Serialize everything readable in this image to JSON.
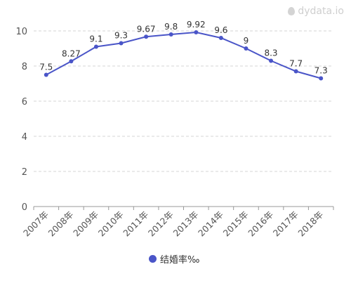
{
  "watermark": "dydata.io",
  "colors": {
    "series": "#4a55c8",
    "grid": "#d6d6d6",
    "axis": "#999999"
  },
  "chart_data": {
    "type": "line",
    "title": "",
    "xlabel": "",
    "ylabel": "",
    "categories": [
      "2007年",
      "2008年",
      "2009年",
      "2010年",
      "2011年",
      "2012年",
      "2013年",
      "2014年",
      "2015年",
      "2016年",
      "2017年",
      "2018年"
    ],
    "series": [
      {
        "name": "结婚率‰",
        "values": [
          7.5,
          8.27,
          9.1,
          9.3,
          9.67,
          9.8,
          9.92,
          9.6,
          9,
          8.3,
          7.7,
          7.3
        ]
      }
    ],
    "data_labels": [
      "7.5",
      "8.27",
      "9.1",
      "9.3",
      "9.67",
      "9.8",
      "9.92",
      "9.6",
      "9",
      "8.3",
      "7.7",
      "7.3"
    ],
    "ylim": [
      0,
      10
    ],
    "yticks": [
      0,
      2,
      4,
      6,
      8,
      10
    ],
    "grid": true,
    "legend_position": "bottom-center"
  }
}
